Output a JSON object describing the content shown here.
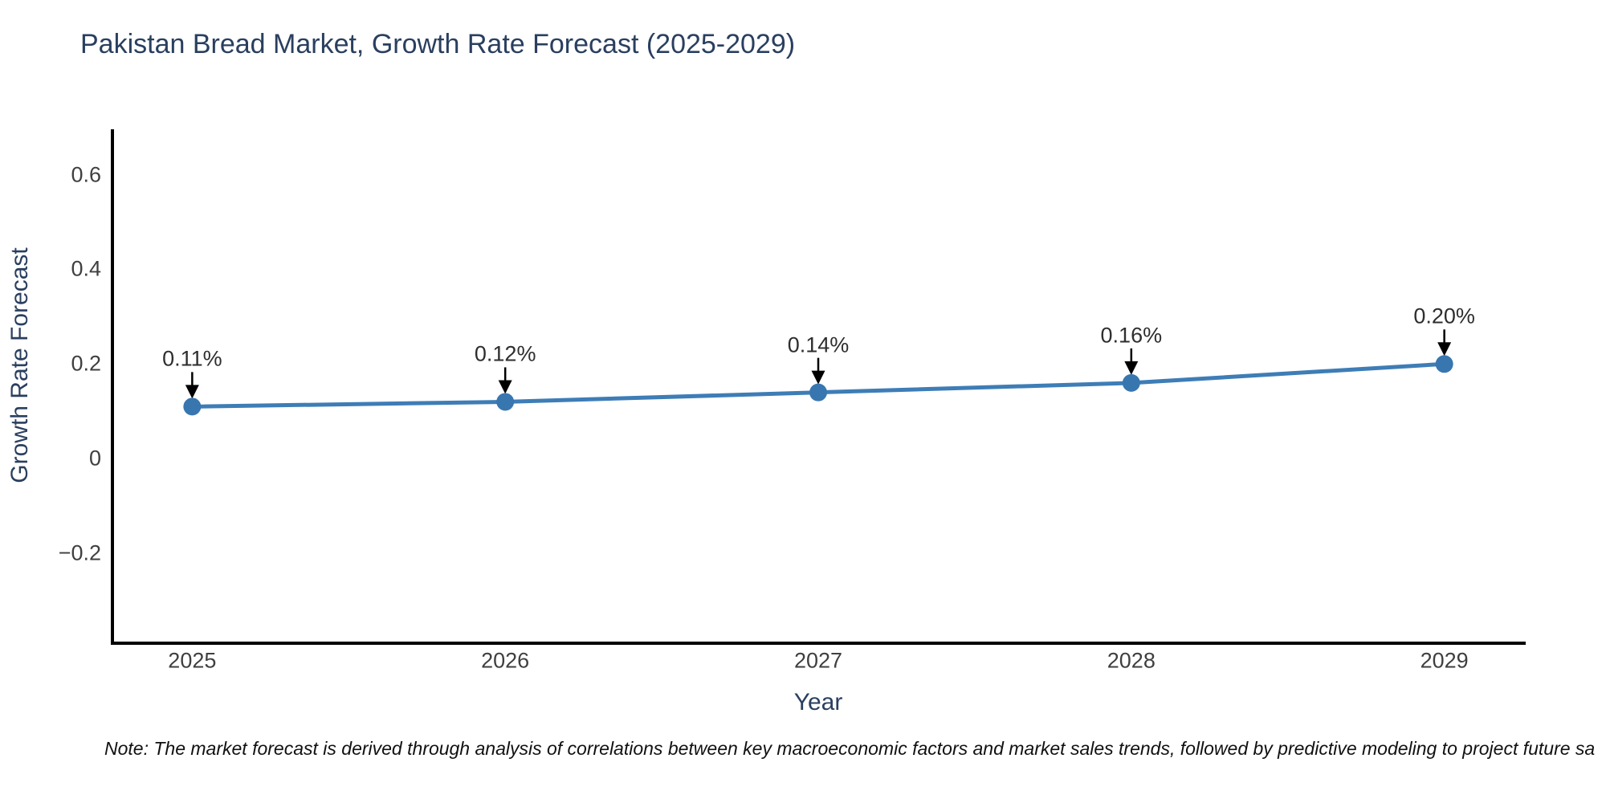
{
  "chart": {
    "title": "Pakistan Bread Market, Growth Rate Forecast (2025-2029)",
    "xlabel": "Year",
    "ylabel": "Growth Rate Forecast",
    "note": "Note: The market forecast is derived through analysis of correlations between key macroeconomic factors and market sales trends, followed by predictive modeling to project future sa"
  },
  "chart_data": {
    "type": "line",
    "title": "Pakistan Bread Market, Growth Rate Forecast (2025-2029)",
    "xlabel": "Year",
    "ylabel": "Growth Rate Forecast",
    "x": [
      2025,
      2026,
      2027,
      2028,
      2029
    ],
    "categories": [
      "2025",
      "2026",
      "2027",
      "2028",
      "2029"
    ],
    "values": [
      0.11,
      0.12,
      0.14,
      0.16,
      0.2
    ],
    "point_labels": [
      "0.11%",
      "0.12%",
      "0.14%",
      "0.16%",
      "0.20%"
    ],
    "yticks": [
      -0.2,
      0,
      0.2,
      0.4,
      0.6
    ],
    "ytick_labels": [
      "−0.2",
      "0",
      "0.2",
      "0.4",
      "0.6"
    ],
    "xlim": [
      2024.74,
      2029.26
    ],
    "ylim": [
      -0.39,
      0.696
    ],
    "grid": false,
    "legend": false,
    "annotations_have_arrows": true,
    "colors": {
      "line": "#3e7db6",
      "marker": "#3876b0",
      "axis": "#000000",
      "tick_text": "#3f3f3f",
      "title_text": "#2a3f5f",
      "annotation_text": "#2e2e2e",
      "arrow": "#000000"
    }
  }
}
